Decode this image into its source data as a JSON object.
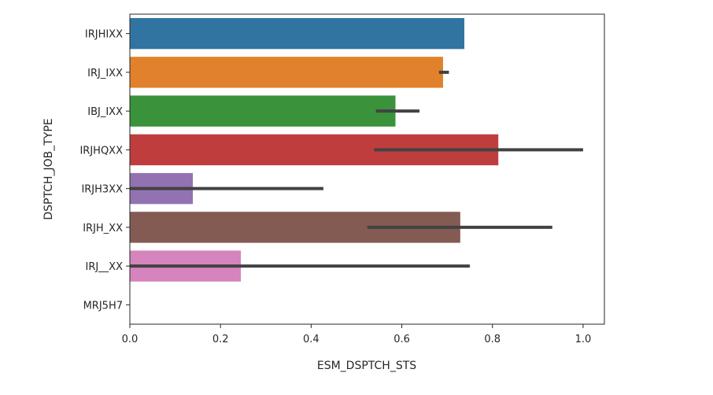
{
  "chart_data": {
    "type": "bar",
    "orientation": "horizontal",
    "title": "",
    "xlabel": "ESM_DSPTCH_STS",
    "ylabel": "DSPTCH_JOB_TYPE",
    "xlim": [
      0,
      1.047
    ],
    "xticks": [
      0.0,
      0.2,
      0.4,
      0.6,
      0.8,
      1.0
    ],
    "xtick_labels": [
      "0.0",
      "0.2",
      "0.4",
      "0.6",
      "0.8",
      "1.0"
    ],
    "grid": false,
    "categories": [
      "IRJHIXX",
      "IRJ_IXX",
      "IBJ_IXX",
      "IRJHQXX",
      "IRJH3XX",
      "IRJH_XX",
      "IRJ__XX",
      "MRJ5H7"
    ],
    "values": [
      0.738,
      0.691,
      0.586,
      0.813,
      0.139,
      0.729,
      0.245,
      0.0
    ],
    "error_bars": [
      null,
      [
        0.682,
        0.704
      ],
      [
        0.543,
        0.639
      ],
      [
        0.539,
        1.0
      ],
      [
        0.0,
        0.427
      ],
      [
        0.524,
        0.932
      ],
      [
        0.0,
        0.75
      ],
      null
    ],
    "colors": [
      "#3274a1",
      "#e1812c",
      "#3a923a",
      "#c03d3e",
      "#9372b2",
      "#845b53",
      "#d684bd",
      "#7f7f7f"
    ],
    "error_color": "#424242"
  }
}
